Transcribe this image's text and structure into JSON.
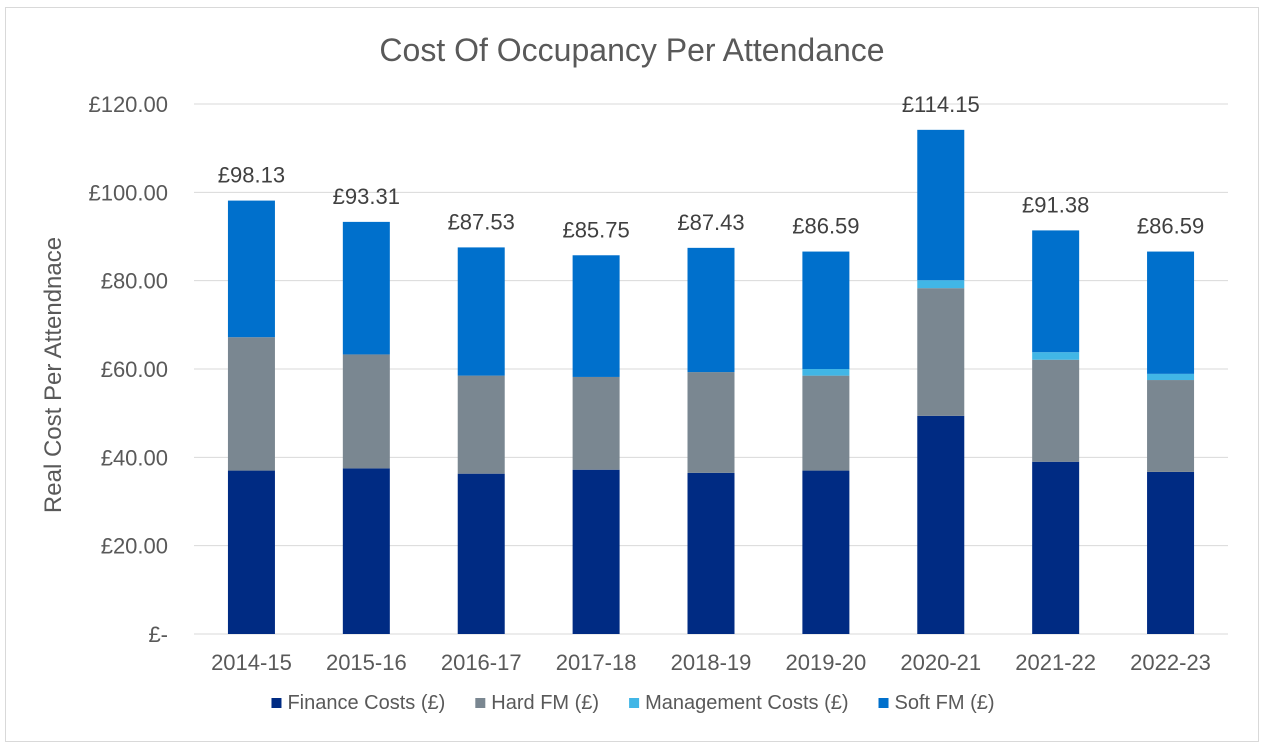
{
  "chart_data": {
    "type": "bar",
    "stacked": true,
    "title": "Cost Of Occupancy Per Attendance",
    "xlabel": "",
    "ylabel": "Real Cost Per Attendnace",
    "ylim": [
      0,
      120
    ],
    "yticks": [
      0,
      20,
      40,
      60,
      80,
      100,
      120
    ],
    "ytick_labels": [
      "£-",
      "£20.00",
      "£40.00",
      "£60.00",
      "£80.00",
      "£100.00",
      "£120.00"
    ],
    "grid": true,
    "legend_position": "bottom",
    "categories": [
      "2014-15",
      "2015-16",
      "2016-17",
      "2017-18",
      "2018-19",
      "2019-20",
      "2020-21",
      "2021-22",
      "2022-23"
    ],
    "series": [
      {
        "name": "Finance Costs (£)",
        "color": "#002b83",
        "values": [
          37.0,
          37.5,
          36.3,
          37.2,
          36.5,
          37.0,
          49.4,
          39.0,
          36.7
        ]
      },
      {
        "name": "Hard FM (£)",
        "color": "#7a8791",
        "values": [
          30.2,
          25.8,
          22.2,
          21.0,
          22.8,
          21.5,
          28.9,
          23.1,
          20.8
        ]
      },
      {
        "name": "Management Costs (£)",
        "color": "#41b6e6",
        "values": [
          0.0,
          0.0,
          0.0,
          0.0,
          0.0,
          1.5,
          1.8,
          1.7,
          1.4
        ]
      },
      {
        "name": "Soft FM (£)",
        "color": "#0070cc",
        "values": [
          30.93,
          30.01,
          29.03,
          27.55,
          28.13,
          26.59,
          34.05,
          27.58,
          27.69
        ]
      }
    ],
    "totals": [
      98.13,
      93.31,
      87.53,
      85.75,
      87.43,
      86.59,
      114.15,
      91.38,
      86.59
    ],
    "total_labels": [
      "£98.13",
      "£93.31",
      "£87.53",
      "£85.75",
      "£87.43",
      "£86.59",
      "£114.15",
      "£91.38",
      "£86.59"
    ]
  }
}
